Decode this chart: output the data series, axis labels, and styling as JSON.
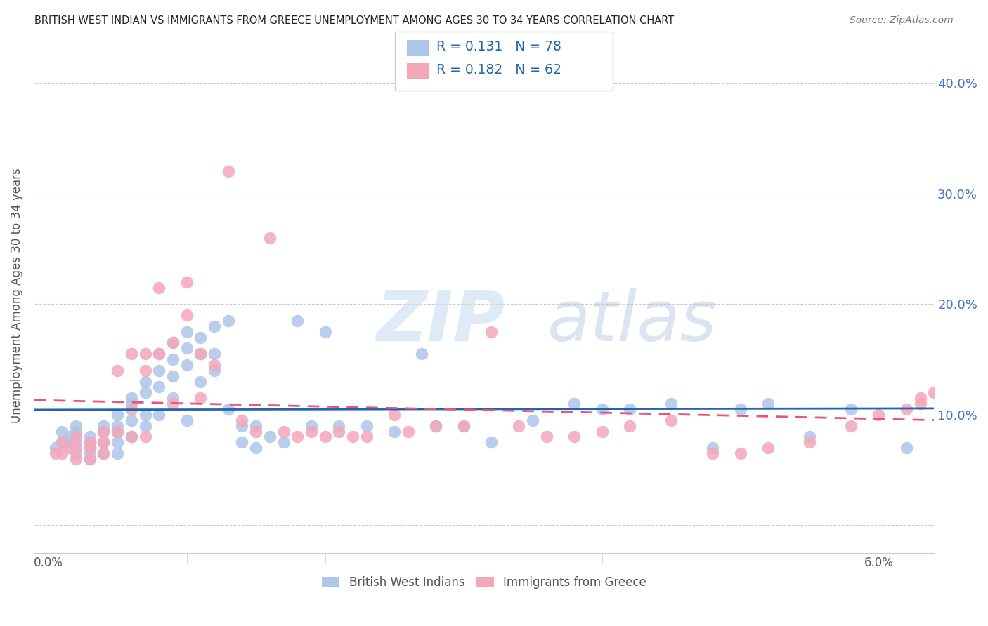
{
  "title": "BRITISH WEST INDIAN VS IMMIGRANTS FROM GREECE UNEMPLOYMENT AMONG AGES 30 TO 34 YEARS CORRELATION CHART",
  "source": "Source: ZipAtlas.com",
  "ylabel": "Unemployment Among Ages 30 to 34 years",
  "y_ticks": [
    0.0,
    0.1,
    0.2,
    0.3,
    0.4
  ],
  "y_tick_labels": [
    "",
    "10.0%",
    "20.0%",
    "30.0%",
    "40.0%"
  ],
  "x_ticks": [
    0.0,
    0.01,
    0.02,
    0.03,
    0.04,
    0.05,
    0.06
  ],
  "x_tick_labels": [
    "0.0%",
    "",
    "",
    "",
    "",
    "",
    "6.0%"
  ],
  "xlim": [
    -0.001,
    0.064
  ],
  "ylim": [
    -0.025,
    0.44
  ],
  "blue_color": "#aec6e8",
  "pink_color": "#f4a7b9",
  "blue_line_color": "#2166ac",
  "pink_line_color": "#e8547a",
  "blue_R": 0.131,
  "blue_N": 78,
  "pink_R": 0.182,
  "pink_N": 62,
  "watermark_zip": "ZIP",
  "watermark_atlas": "atlas",
  "legend_label_blue": "British West Indians",
  "legend_label_pink": "Immigrants from Greece",
  "blue_scatter_x": [
    0.0005,
    0.001,
    0.001,
    0.0015,
    0.0015,
    0.002,
    0.002,
    0.002,
    0.002,
    0.003,
    0.003,
    0.003,
    0.003,
    0.003,
    0.004,
    0.004,
    0.004,
    0.004,
    0.005,
    0.005,
    0.005,
    0.005,
    0.005,
    0.006,
    0.006,
    0.006,
    0.006,
    0.007,
    0.007,
    0.007,
    0.007,
    0.008,
    0.008,
    0.008,
    0.008,
    0.009,
    0.009,
    0.009,
    0.009,
    0.01,
    0.01,
    0.01,
    0.01,
    0.011,
    0.011,
    0.011,
    0.012,
    0.012,
    0.012,
    0.013,
    0.013,
    0.014,
    0.014,
    0.015,
    0.015,
    0.016,
    0.017,
    0.018,
    0.019,
    0.02,
    0.021,
    0.023,
    0.025,
    0.027,
    0.028,
    0.03,
    0.032,
    0.035,
    0.038,
    0.04,
    0.042,
    0.045,
    0.048,
    0.05,
    0.052,
    0.055,
    0.058,
    0.062
  ],
  "blue_scatter_y": [
    0.07,
    0.085,
    0.075,
    0.08,
    0.075,
    0.09,
    0.085,
    0.075,
    0.065,
    0.08,
    0.075,
    0.07,
    0.065,
    0.06,
    0.09,
    0.085,
    0.075,
    0.065,
    0.1,
    0.09,
    0.085,
    0.075,
    0.065,
    0.115,
    0.11,
    0.095,
    0.08,
    0.13,
    0.12,
    0.1,
    0.09,
    0.155,
    0.14,
    0.125,
    0.1,
    0.165,
    0.15,
    0.135,
    0.115,
    0.175,
    0.16,
    0.145,
    0.095,
    0.17,
    0.155,
    0.13,
    0.18,
    0.155,
    0.14,
    0.185,
    0.105,
    0.09,
    0.075,
    0.09,
    0.07,
    0.08,
    0.075,
    0.185,
    0.09,
    0.175,
    0.09,
    0.09,
    0.085,
    0.155,
    0.09,
    0.09,
    0.075,
    0.095,
    0.11,
    0.105,
    0.105,
    0.11,
    0.07,
    0.105,
    0.11,
    0.08,
    0.105,
    0.07
  ],
  "pink_scatter_x": [
    0.0005,
    0.001,
    0.001,
    0.0015,
    0.002,
    0.002,
    0.002,
    0.003,
    0.003,
    0.003,
    0.004,
    0.004,
    0.004,
    0.005,
    0.005,
    0.006,
    0.006,
    0.006,
    0.007,
    0.007,
    0.007,
    0.008,
    0.008,
    0.009,
    0.009,
    0.01,
    0.01,
    0.011,
    0.011,
    0.012,
    0.013,
    0.014,
    0.015,
    0.016,
    0.017,
    0.018,
    0.019,
    0.02,
    0.021,
    0.022,
    0.023,
    0.025,
    0.026,
    0.028,
    0.03,
    0.032,
    0.034,
    0.036,
    0.038,
    0.04,
    0.042,
    0.045,
    0.048,
    0.05,
    0.052,
    0.055,
    0.058,
    0.06,
    0.062,
    0.063,
    0.063,
    0.064
  ],
  "pink_scatter_y": [
    0.065,
    0.075,
    0.065,
    0.07,
    0.08,
    0.07,
    0.06,
    0.075,
    0.07,
    0.06,
    0.085,
    0.075,
    0.065,
    0.14,
    0.085,
    0.155,
    0.105,
    0.08,
    0.155,
    0.14,
    0.08,
    0.215,
    0.155,
    0.165,
    0.11,
    0.22,
    0.19,
    0.155,
    0.115,
    0.145,
    0.32,
    0.095,
    0.085,
    0.26,
    0.085,
    0.08,
    0.085,
    0.08,
    0.085,
    0.08,
    0.08,
    0.1,
    0.085,
    0.09,
    0.09,
    0.175,
    0.09,
    0.08,
    0.08,
    0.085,
    0.09,
    0.095,
    0.065,
    0.065,
    0.07,
    0.075,
    0.09,
    0.1,
    0.105,
    0.11,
    0.115,
    0.12
  ]
}
